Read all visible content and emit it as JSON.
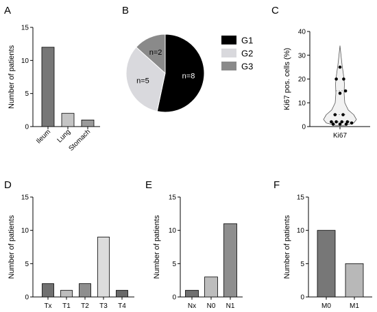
{
  "colors": {
    "g1": "#000000",
    "g2": "#d9d9dd",
    "g3": "#8a8a8a",
    "dark_bar": "#777777",
    "light_bar": "#d9d9d9",
    "mid_bar": "#a0a0a0",
    "bar_stroke": "#000000"
  },
  "chart_data": [
    {
      "panel": "A",
      "type": "bar",
      "ylabel": "Number of patients",
      "ylim": [
        0,
        15
      ],
      "yticks": [
        0,
        5,
        10,
        15
      ],
      "categories": [
        "Ileum",
        "Lung",
        "Stomach"
      ],
      "values": [
        12,
        2,
        1
      ],
      "bar_colors": [
        "#777777",
        "#c4c4c4",
        "#9a9a9a"
      ],
      "rotated_ticks": true
    },
    {
      "panel": "B",
      "type": "pie",
      "slices": [
        {
          "name": "G1",
          "value": 8,
          "label": "n=8",
          "color": "#000000"
        },
        {
          "name": "G2",
          "value": 5,
          "label": "n=5",
          "color": "#d9d9dd"
        },
        {
          "name": "G3",
          "value": 2,
          "label": "n=2",
          "color": "#8a8a8a"
        }
      ],
      "legend": [
        "G1",
        "G2",
        "G3"
      ]
    },
    {
      "panel": "C",
      "type": "scatter",
      "subtype": "violin",
      "ylabel": "Ki67 pos. cells (%)",
      "ylim": [
        0,
        40
      ],
      "yticks": [
        0,
        10,
        20,
        30,
        40
      ],
      "category": "Ki67",
      "points": [
        {
          "dx": 0,
          "y": 25
        },
        {
          "dx": -0.6,
          "y": 20
        },
        {
          "dx": 0.6,
          "y": 20
        },
        {
          "dx": 0.9,
          "y": 15
        },
        {
          "dx": 0,
          "y": 14
        },
        {
          "dx": -0.8,
          "y": 5
        },
        {
          "dx": 0.5,
          "y": 5
        },
        {
          "dx": -1.4,
          "y": 2
        },
        {
          "dx": -0.6,
          "y": 2
        },
        {
          "dx": 0.3,
          "y": 2
        },
        {
          "dx": 1.2,
          "y": 2
        },
        {
          "dx": -1.1,
          "y": 1
        },
        {
          "dx": 0,
          "y": 1
        },
        {
          "dx": 1.0,
          "y": 1
        },
        {
          "dx": 1.9,
          "y": 1.5
        }
      ],
      "violin_range": [
        0.5,
        34
      ]
    },
    {
      "panel": "D",
      "type": "bar",
      "ylabel": "Number of patients",
      "ylim": [
        0,
        15
      ],
      "yticks": [
        0,
        5,
        10,
        15
      ],
      "categories": [
        "Tx",
        "T1",
        "T2",
        "T3",
        "T4"
      ],
      "values": [
        2,
        1,
        2,
        9,
        1
      ],
      "bar_colors": [
        "#707070",
        "#bdbdbd",
        "#8e8e8e",
        "#dcdcdc",
        "#6a6a6a"
      ],
      "rotated_ticks": false
    },
    {
      "panel": "E",
      "type": "bar",
      "ylabel": "Number of patients",
      "ylim": [
        0,
        15
      ],
      "yticks": [
        0,
        5,
        10,
        15
      ],
      "categories": [
        "Nx",
        "N0",
        "N1"
      ],
      "values": [
        1,
        3,
        11
      ],
      "bar_colors": [
        "#707070",
        "#bdbdbd",
        "#8e8e8e"
      ],
      "rotated_ticks": false
    },
    {
      "panel": "F",
      "type": "bar",
      "ylabel": "Number of patients",
      "ylim": [
        0,
        15
      ],
      "yticks": [
        0,
        5,
        10,
        15
      ],
      "categories": [
        "M0",
        "M1"
      ],
      "values": [
        10,
        5
      ],
      "bar_colors": [
        "#777777",
        "#b8b8b8"
      ],
      "rotated_ticks": false
    }
  ]
}
